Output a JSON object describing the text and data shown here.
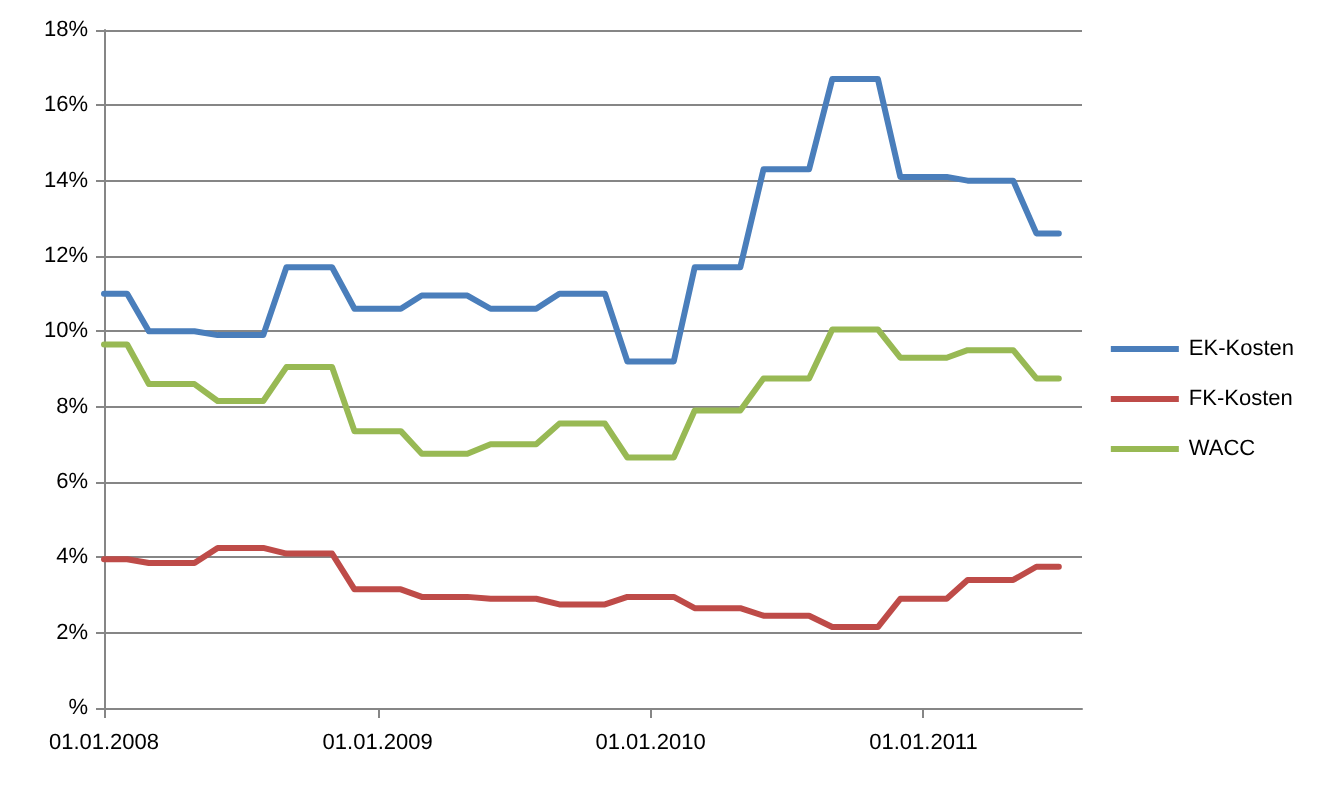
{
  "chart_data": {
    "type": "line",
    "x": [
      "2008-01",
      "2008-02",
      "2008-03",
      "2008-04",
      "2008-05",
      "2008-06",
      "2008-07",
      "2008-08",
      "2008-09",
      "2008-10",
      "2008-11",
      "2008-12",
      "2009-01",
      "2009-02",
      "2009-03",
      "2009-04",
      "2009-05",
      "2009-06",
      "2009-07",
      "2009-08",
      "2009-09",
      "2009-10",
      "2009-11",
      "2009-12",
      "2010-01",
      "2010-02",
      "2010-03",
      "2010-04",
      "2010-05",
      "2010-06",
      "2010-07",
      "2010-08",
      "2010-09",
      "2010-10",
      "2010-11",
      "2010-12",
      "2011-01",
      "2011-02",
      "2011-03",
      "2011-04",
      "2011-05",
      "2011-06",
      "2011-07"
    ],
    "series": [
      {
        "name": "EK-Kosten",
        "color": "#4a7ebb",
        "values": [
          11.0,
          11.0,
          10.0,
          10.0,
          10.0,
          9.9,
          9.9,
          9.9,
          11.7,
          11.7,
          11.7,
          10.6,
          10.6,
          10.6,
          10.95,
          10.95,
          10.95,
          10.6,
          10.6,
          10.6,
          11.0,
          11.0,
          11.0,
          9.2,
          9.2,
          9.2,
          11.7,
          11.7,
          11.7,
          14.3,
          14.3,
          14.3,
          16.7,
          16.7,
          16.7,
          14.1,
          14.1,
          14.1,
          14.0,
          14.0,
          14.0,
          12.6,
          12.6
        ]
      },
      {
        "name": "FK-Kosten",
        "color": "#be4b48",
        "values": [
          3.95,
          3.95,
          3.85,
          3.85,
          3.85,
          4.25,
          4.25,
          4.25,
          4.1,
          4.1,
          4.1,
          3.15,
          3.15,
          3.15,
          2.95,
          2.95,
          2.95,
          2.9,
          2.9,
          2.9,
          2.75,
          2.75,
          2.75,
          2.95,
          2.95,
          2.95,
          2.65,
          2.65,
          2.65,
          2.45,
          2.45,
          2.45,
          2.15,
          2.15,
          2.15,
          2.9,
          2.9,
          2.9,
          3.4,
          3.4,
          3.4,
          3.75,
          3.75
        ]
      },
      {
        "name": "WACC",
        "color": "#98b954",
        "values": [
          9.65,
          9.65,
          8.6,
          8.6,
          8.6,
          8.15,
          8.15,
          8.15,
          9.05,
          9.05,
          9.05,
          7.35,
          7.35,
          7.35,
          6.75,
          6.75,
          6.75,
          7.0,
          7.0,
          7.0,
          7.55,
          7.55,
          7.55,
          6.65,
          6.65,
          6.65,
          7.9,
          7.9,
          7.9,
          8.75,
          8.75,
          8.75,
          10.05,
          10.05,
          10.05,
          9.3,
          9.3,
          9.3,
          9.5,
          9.5,
          9.5,
          8.75,
          8.75
        ]
      }
    ],
    "xlim": [
      "2008-01",
      "2011-08"
    ],
    "xticks": [
      {
        "value": "2008-01-01",
        "label": "01.01.2008"
      },
      {
        "value": "2009-01-01",
        "label": "01.01.2009"
      },
      {
        "value": "2010-01-01",
        "label": "01.01.2010"
      },
      {
        "value": "2011-01-01",
        "label": "01.01.2011"
      }
    ],
    "ylim": [
      0,
      18
    ],
    "yticks": [
      {
        "value": 0,
        "label": "%"
      },
      {
        "value": 2,
        "label": "2%"
      },
      {
        "value": 4,
        "label": "4%"
      },
      {
        "value": 6,
        "label": "6%"
      },
      {
        "value": 8,
        "label": "8%"
      },
      {
        "value": 10,
        "label": "10%"
      },
      {
        "value": 12,
        "label": "12%"
      },
      {
        "value": 14,
        "label": "14%"
      },
      {
        "value": 16,
        "label": "16%"
      },
      {
        "value": 18,
        "label": "18%"
      }
    ],
    "grid": "y",
    "legend": "right",
    "marker": "none",
    "line_style": "solid"
  }
}
